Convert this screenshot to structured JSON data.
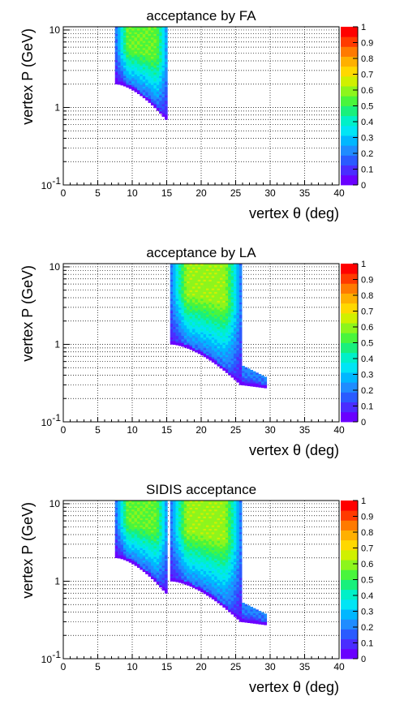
{
  "chart_data": [
    {
      "type": "heatmap",
      "title": "acceptance by FA",
      "xlabel": "vertex θ (deg)",
      "ylabel": "vertex P (GeV)",
      "xlim": [
        0,
        40
      ],
      "ylim": [
        0.1,
        11
      ],
      "yscale": "log",
      "grid": true,
      "x_ticks": [
        "0",
        "5",
        "10",
        "15",
        "20",
        "25",
        "30",
        "35",
        "40"
      ],
      "y_ticks": [
        "10^-1",
        "1",
        "10"
      ],
      "z_range": [
        0,
        1
      ],
      "z_ticks": [
        "0",
        "0.1",
        "0.2",
        "0.3",
        "0.4",
        "0.5",
        "0.6",
        "0.7",
        "0.8",
        "0.9",
        "1"
      ],
      "regions": [
        {
          "theta": [
            7.5,
            15.0
          ],
          "p_min_low_theta": 2.0,
          "p_min_high_theta": 0.65,
          "p_max": 11,
          "peak": 0.55
        }
      ]
    },
    {
      "type": "heatmap",
      "title": "acceptance by LA",
      "xlabel": "vertex θ (deg)",
      "ylabel": "vertex P (GeV)",
      "xlim": [
        0,
        40
      ],
      "ylim": [
        0.1,
        11
      ],
      "yscale": "log",
      "grid": true,
      "x_ticks": [
        "0",
        "5",
        "10",
        "15",
        "20",
        "25",
        "30",
        "35",
        "40"
      ],
      "y_ticks": [
        "10^-1",
        "1",
        "10"
      ],
      "z_range": [
        0,
        1
      ],
      "z_ticks": [
        "0",
        "0.1",
        "0.2",
        "0.3",
        "0.4",
        "0.5",
        "0.6",
        "0.7",
        "0.8",
        "0.9",
        "1"
      ],
      "regions": [
        {
          "theta": [
            15.5,
            25.5
          ],
          "p_min_low_theta": 1.0,
          "p_min_high_theta": 0.3,
          "p_max": 11,
          "peak": 0.6,
          "tail_theta": [
            25.5,
            29.5
          ]
        }
      ]
    },
    {
      "type": "heatmap",
      "title": "SIDIS acceptance",
      "xlabel": "vertex θ (deg)",
      "ylabel": "vertex P (GeV)",
      "xlim": [
        0,
        40
      ],
      "ylim": [
        0.1,
        11
      ],
      "yscale": "log",
      "grid": true,
      "x_ticks": [
        "0",
        "5",
        "10",
        "15",
        "20",
        "25",
        "30",
        "35",
        "40"
      ],
      "y_ticks": [
        "10^-1",
        "1",
        "10"
      ],
      "z_range": [
        0,
        1
      ],
      "z_ticks": [
        "0",
        "0.1",
        "0.2",
        "0.3",
        "0.4",
        "0.5",
        "0.6",
        "0.7",
        "0.8",
        "0.9",
        "1"
      ],
      "regions": [
        {
          "theta": [
            7.5,
            15.0
          ],
          "p_min_low_theta": 2.0,
          "p_min_high_theta": 0.65,
          "p_max": 11,
          "peak": 0.55
        },
        {
          "theta": [
            15.5,
            25.5
          ],
          "p_min_low_theta": 1.0,
          "p_min_high_theta": 0.3,
          "p_max": 11,
          "peak": 0.6,
          "tail_theta": [
            25.5,
            29.5
          ]
        }
      ]
    }
  ],
  "colors": {
    "palette": [
      "#6a00ff",
      "#4a2dff",
      "#2a5bff",
      "#1f8cff",
      "#00b7ff",
      "#00e5f5",
      "#00f0c8",
      "#19f07c",
      "#49f53c",
      "#8df51c",
      "#d0f000",
      "#ffd800",
      "#ffb000",
      "#ff7a00",
      "#ff3a00",
      "#ff0000"
    ]
  }
}
